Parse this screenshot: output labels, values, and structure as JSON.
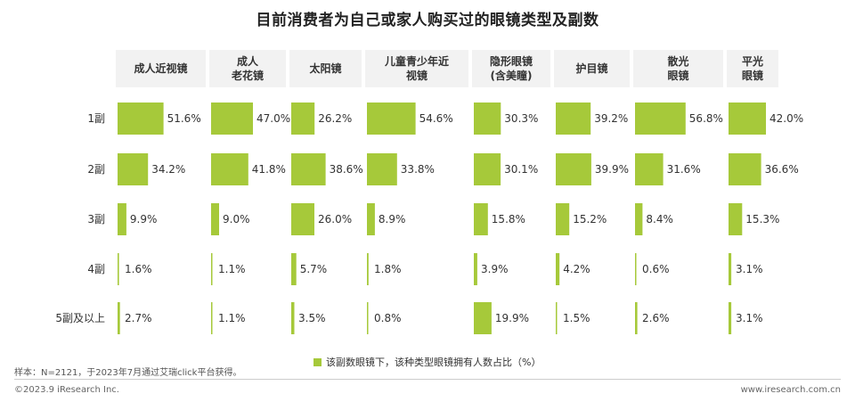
{
  "chart_data": {
    "type": "bar",
    "title": "目前消费者为自己或家人购买过的眼镜类型及副数",
    "categories": [
      "1副",
      "2副",
      "3副",
      "4副",
      "5副及以上"
    ],
    "groups": [
      {
        "line1": "成人近视镜",
        "line2": ""
      },
      {
        "line1": "成人",
        "line2": "老花镜"
      },
      {
        "line1": "太阳镜",
        "line2": ""
      },
      {
        "line1": "儿童青少年近",
        "line2": "视镜"
      },
      {
        "line1": "隐形眼镜",
        "line2": "(含美瞳)"
      },
      {
        "line1": "护目镜",
        "line2": ""
      },
      {
        "line1": "散光",
        "line2": "眼镜"
      },
      {
        "line1": "平光",
        "line2": "眼镜"
      }
    ],
    "series": [
      {
        "name": "成人近视镜",
        "values": [
          51.6,
          34.2,
          9.9,
          1.6,
          2.7
        ],
        "labels": [
          "51.6%",
          "34.2%",
          "9.9%",
          "1.6%",
          "2.7%"
        ]
      },
      {
        "name": "成人老花镜",
        "values": [
          47.0,
          41.8,
          9.0,
          1.1,
          1.1
        ],
        "labels": [
          "47.0%",
          "41.8%",
          "9.0%",
          "1.1%",
          "1.1%"
        ]
      },
      {
        "name": "太阳镜",
        "values": [
          26.2,
          38.6,
          26.0,
          5.7,
          3.5
        ],
        "labels": [
          "26.2%",
          "38.6%",
          "26.0%",
          "5.7%",
          "3.5%"
        ]
      },
      {
        "name": "儿童青少年近视镜",
        "values": [
          54.6,
          33.8,
          8.9,
          1.8,
          0.8
        ],
        "labels": [
          "54.6%",
          "33.8%",
          "8.9%",
          "1.8%",
          "0.8%"
        ]
      },
      {
        "name": "隐形眼镜(含美瞳)",
        "values": [
          30.3,
          30.1,
          15.8,
          3.9,
          19.9
        ],
        "labels": [
          "30.3%",
          "30.1%",
          "15.8%",
          "3.9%",
          "19.9%"
        ]
      },
      {
        "name": "护目镜",
        "values": [
          39.2,
          39.9,
          15.2,
          4.2,
          1.5
        ],
        "labels": [
          "39.2%",
          "39.9%",
          "15.2%",
          "4.2%",
          "1.5%"
        ]
      },
      {
        "name": "散光眼镜",
        "values": [
          56.8,
          31.6,
          8.4,
          0.6,
          2.6
        ],
        "labels": [
          "56.8%",
          "31.6%",
          "8.4%",
          "0.6%",
          "2.6%"
        ]
      },
      {
        "name": "平光眼镜",
        "values": [
          42.0,
          36.6,
          15.3,
          3.1,
          3.1
        ],
        "labels": [
          "42.0%",
          "36.6%",
          "15.3%",
          "3.1%",
          "3.1%"
        ]
      }
    ],
    "legend": "该副数眼镜下，该种类型眼镜拥有人数占比（%）",
    "bar_color": "#a6c93a",
    "xlabel": "",
    "ylabel": "",
    "xlim": [
      0,
      100
    ]
  },
  "note": "样本：N=2121，于2023年7月通过艾瑞click平台获得。",
  "footer": {
    "left": "©2023.9 iResearch Inc.",
    "right": "www.iresearch.com.cn"
  }
}
